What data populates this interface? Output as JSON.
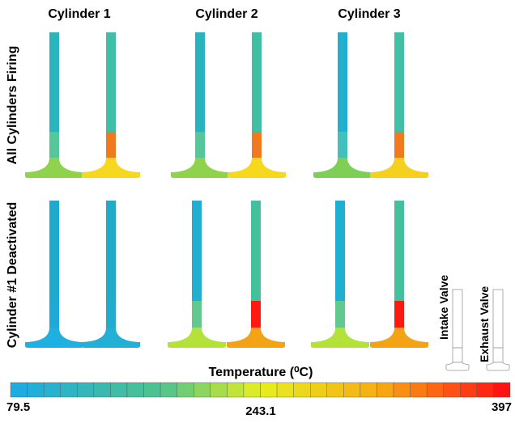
{
  "columns": [
    "Cylinder 1",
    "Cylinder 2",
    "Cylinder 3"
  ],
  "rows": [
    "All Cylinders Firing",
    "Cylinder #1 Deactivated"
  ],
  "colorbar": {
    "title": "Temperature (⁰C)",
    "min_label": "79.5",
    "mid_label": "243.1",
    "max_label": "397"
  },
  "legend": {
    "intake": "Intake Valve",
    "exhaust": "Exhaust Valve"
  }
}
